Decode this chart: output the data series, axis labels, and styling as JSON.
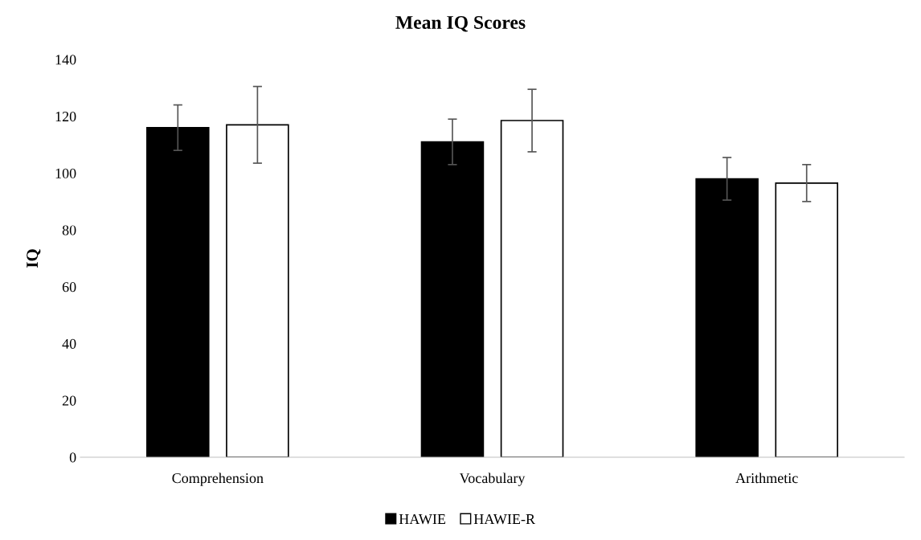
{
  "chart_data": {
    "type": "bar",
    "title": "Mean IQ Scores",
    "ylabel": "IQ",
    "categories": [
      "Comprehension",
      "Vocabulary",
      "Arithmetic"
    ],
    "series": [
      {
        "name": "HAWIE",
        "color": "#000000",
        "values": [
          116,
          111,
          98
        ],
        "errors": [
          8,
          8,
          7.5
        ]
      },
      {
        "name": "HAWIE-R",
        "color": "#ffffff",
        "values": [
          117,
          118.5,
          96.5
        ],
        "errors": [
          13.5,
          11,
          6.5
        ]
      }
    ],
    "ylim": [
      0,
      140
    ],
    "yticks": [
      0,
      20,
      40,
      60,
      80,
      100,
      120,
      140
    ],
    "grid": false,
    "legend": "bottom"
  }
}
